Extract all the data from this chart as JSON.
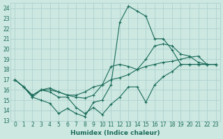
{
  "xlabel": "Humidex (Indice chaleur)",
  "xlim": [
    -0.5,
    23.5
  ],
  "ylim": [
    13,
    24.5
  ],
  "yticks": [
    13,
    14,
    15,
    16,
    17,
    18,
    19,
    20,
    21,
    22,
    23,
    24
  ],
  "xticks": [
    0,
    1,
    2,
    3,
    4,
    5,
    6,
    7,
    8,
    9,
    10,
    11,
    12,
    13,
    14,
    15,
    16,
    17,
    18,
    19,
    20,
    21,
    22,
    23
  ],
  "bg_color": "#cce8e0",
  "grid_major_color": "#aacccc",
  "grid_minor_color": "#bbdddd",
  "line_color": "#1a6b5a",
  "line1_x": [
    0,
    1,
    2,
    3,
    4,
    5,
    6,
    7,
    8,
    9,
    10,
    11,
    12,
    13,
    14,
    15,
    16,
    17,
    18,
    19,
    20,
    21,
    22,
    23
  ],
  "line1_y": [
    17,
    16.3,
    15.3,
    15.0,
    14.7,
    13.7,
    14.2,
    13.7,
    13.4,
    14.8,
    15.0,
    16.5,
    22.6,
    24.2,
    23.7,
    23.2,
    21.0,
    21.0,
    19.9,
    18.5,
    18.5,
    18.5,
    18.5,
    18.5
  ],
  "line2_x": [
    0,
    1,
    2,
    3,
    4,
    5,
    6,
    7,
    8,
    9,
    10,
    11,
    12,
    13,
    14,
    15,
    16,
    17,
    18,
    19,
    20,
    21,
    22,
    23
  ],
  "line2_y": [
    17,
    16.3,
    15.3,
    16.0,
    16.2,
    15.8,
    15.5,
    15.3,
    15.2,
    15.5,
    16.5,
    18.3,
    18.5,
    18.3,
    18.0,
    19.0,
    20.3,
    20.5,
    20.3,
    19.5,
    19.3,
    18.7,
    18.5,
    18.5
  ],
  "line3_x": [
    0,
    1,
    2,
    3,
    4,
    5,
    6,
    7,
    8,
    9,
    10,
    11,
    12,
    13,
    14,
    15,
    16,
    17,
    18,
    19,
    20,
    21,
    22,
    23
  ],
  "line3_y": [
    17,
    16.3,
    15.5,
    16.0,
    15.8,
    15.3,
    15.3,
    14.3,
    13.7,
    14.3,
    13.6,
    14.6,
    15.3,
    16.3,
    16.3,
    14.8,
    16.5,
    17.3,
    17.8,
    18.5,
    18.5,
    18.5,
    18.5,
    18.5
  ],
  "line4_x": [
    0,
    1,
    2,
    3,
    4,
    5,
    6,
    7,
    8,
    9,
    10,
    11,
    12,
    13,
    14,
    15,
    16,
    17,
    18,
    19,
    20,
    21,
    22,
    23
  ],
  "line4_y": [
    17,
    16.3,
    15.5,
    16.0,
    16.0,
    15.8,
    15.5,
    15.5,
    15.8,
    16.3,
    16.5,
    17.0,
    17.2,
    17.5,
    18.0,
    18.3,
    18.5,
    18.7,
    18.8,
    19.0,
    19.2,
    19.3,
    18.5,
    18.5
  ]
}
